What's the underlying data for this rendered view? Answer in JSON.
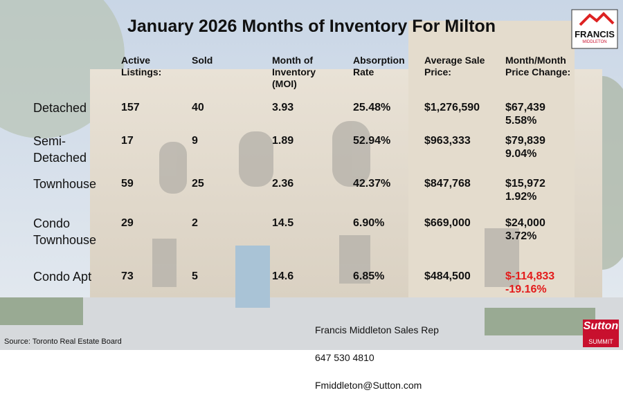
{
  "title": "January 2026 Months of Inventory For Milton",
  "table": {
    "headers": [
      "Active\nListings:",
      "Sold",
      "Month of\nInventory\n(MOI)",
      "Absorption\nRate",
      "Average Sale\nPrice:",
      "Month/Month\nPrice Change:"
    ],
    "rows": [
      [
        "Detached",
        "157",
        "40",
        "3.93",
        "25.48%",
        "$1,276,590",
        "$67,439",
        "5.58%"
      ],
      [
        "Semi-\nDetached",
        "17",
        "9",
        "1.89",
        "52.94%",
        "$963,333",
        "$79,839",
        "9.04%"
      ],
      [
        "Townhouse",
        "59",
        "25",
        "2.36",
        "42.37%",
        "$847,768",
        "$15,972",
        "1.92%"
      ],
      [
        "Condo\nTownhouse",
        "29",
        "2",
        "14.5",
        "6.90%",
        "$669,000",
        "$24,000",
        "3.72%"
      ],
      [
        "Condo Apt",
        "73",
        "5",
        "14.6",
        "6.85%",
        "$484,500",
        "$-114,833",
        "-19.16%"
      ]
    ]
  },
  "contact": [
    "Francis Middleton Sales Rep",
    "647 530 4810",
    "Fmiddleton@Sutton.com"
  ],
  "source": "Source: Toronto Real Estate Board",
  "logos": {
    "top": [
      "FRANCIS",
      "MIDDLETON"
    ],
    "bottom": [
      "Sutton",
      "SUMMIT"
    ]
  }
}
